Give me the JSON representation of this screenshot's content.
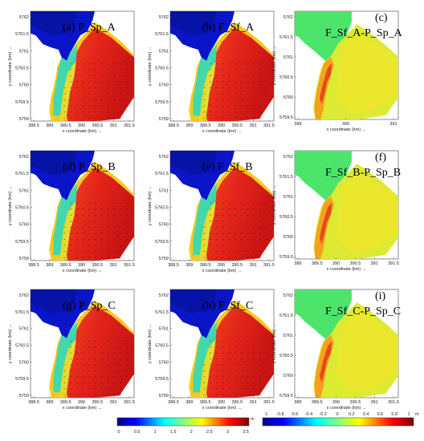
{
  "chart_data": {
    "type": "heatmap",
    "panels": [
      {
        "title": "(a) P_Sp_A",
        "kind": "depth",
        "xlabel": "x coordinate (km) →",
        "ylabel": "y coordinate (km) →",
        "xticks": [
          "388.5",
          "389",
          "389.5",
          "390",
          "390.5",
          "391",
          "391.5"
        ],
        "yticks": [
          "5759",
          "5759.5",
          "5760",
          "5760.5",
          "5761",
          "5761.5",
          "5762"
        ]
      },
      {
        "title": "(b) F_Sf_A",
        "kind": "depth",
        "xlabel": "x coordinate (km) →",
        "ylabel": "y coordinate (km) →",
        "xticks": [
          "388.5",
          "389",
          "389.5",
          "390",
          "390.5",
          "391",
          "391.5"
        ],
        "yticks": [
          "5759",
          "5759.5",
          "5760",
          "5760.5",
          "5761",
          "5761.5",
          "5762"
        ]
      },
      {
        "title": "(c)",
        "subtitle": "F_Sf_A-P_Sp_A",
        "kind": "diff",
        "xlabel": "x coordinate (km) →",
        "ylabel": "y coordinate (km) →",
        "xticks": [
          "389",
          "390",
          "391"
        ],
        "yticks": [
          "5759.5",
          "5760",
          "5760.5",
          "5761",
          "5761.5",
          "5762"
        ]
      },
      {
        "title": "(d) P_Sp_B",
        "kind": "depth",
        "xlabel": "x coordinate (km) →",
        "ylabel": "y coordinate (km) →",
        "xticks": [
          "388.5",
          "389",
          "389.5",
          "390",
          "390.5",
          "391",
          "391.5"
        ],
        "yticks": [
          "5759",
          "5759.5",
          "5760",
          "5760.5",
          "5761",
          "5761.5",
          "5762"
        ]
      },
      {
        "title": "(e)  F_Sf_B",
        "kind": "depth",
        "xlabel": "x coordinate (km) →",
        "ylabel": "y coordinate (km) →",
        "xticks": [
          "388.5",
          "389",
          "389.5",
          "390",
          "390.5",
          "391",
          "391.5"
        ],
        "yticks": [
          "5759",
          "5759.5",
          "5760",
          "5760.5",
          "5761",
          "5761.5",
          "5762"
        ]
      },
      {
        "title": "(f)",
        "subtitle": "F_Sf_B-P_Sp_B",
        "kind": "diff",
        "xlabel": "x coordinate (km) →",
        "ylabel": "y coordinate (km) →",
        "xticks": [
          "389",
          "389.5",
          "390",
          "390.5",
          "391",
          "391.5"
        ],
        "yticks": [
          "5759.5",
          "5760",
          "5760.5",
          "5761",
          "5761.5",
          "5762"
        ]
      },
      {
        "title": "(g) P_Sp_C",
        "kind": "depth",
        "xlabel": "x coordinate (km) →",
        "ylabel": "y coordinate (km) →",
        "xticks": [
          "388.5",
          "389",
          "389.5",
          "390",
          "390.5",
          "391",
          "391.5"
        ],
        "yticks": [
          "5759",
          "5759.5",
          "5760",
          "5760.5",
          "5761",
          "5761.5",
          "5762"
        ]
      },
      {
        "title": "(h) F_Sf_C",
        "kind": "depth",
        "xlabel": "x coordinate (km) →",
        "ylabel": "y coordinate (km) →",
        "xticks": [
          "388.5",
          "389",
          "389.5",
          "390",
          "390.5",
          "391",
          "391.5"
        ],
        "yticks": [
          "5759",
          "5759.5",
          "5760",
          "5760.5",
          "5761",
          "5761.5",
          "5762"
        ]
      },
      {
        "title": "(i)",
        "subtitle": "F_Sf_C-P_Sp_C",
        "kind": "diff",
        "xlabel": "x coordinate (km) →",
        "ylabel": "y coordinate (km) →",
        "xticks": [
          "389",
          "389.5",
          "390",
          "390.5",
          "391",
          "391.5"
        ],
        "yticks": [
          "5759.5",
          "5760",
          "5760.5",
          "5761",
          "5761.5",
          "5762"
        ]
      }
    ],
    "colorbar_depth": {
      "ticks": [
        "0",
        "0.5",
        "1",
        "1.5",
        "2",
        "2.5",
        "3",
        "3.5"
      ],
      "unit": "m",
      "range": [
        0,
        3.5
      ]
    },
    "colorbar_diff": {
      "ticks": [
        "-1",
        "-0.8",
        "-0.6",
        "-0.4",
        "-0.2",
        "0",
        "0.2",
        "0.4",
        "0.6",
        "0.8",
        "1"
      ],
      "unit": "m",
      "range": [
        -1,
        1
      ]
    }
  },
  "colors": {
    "deep_blue": "#0a14c8",
    "green": "#49e66a",
    "yellow": "#f2ec1c",
    "orange": "#f58a1a",
    "red": "#e8281c",
    "dark_red": "#a80e0e"
  }
}
